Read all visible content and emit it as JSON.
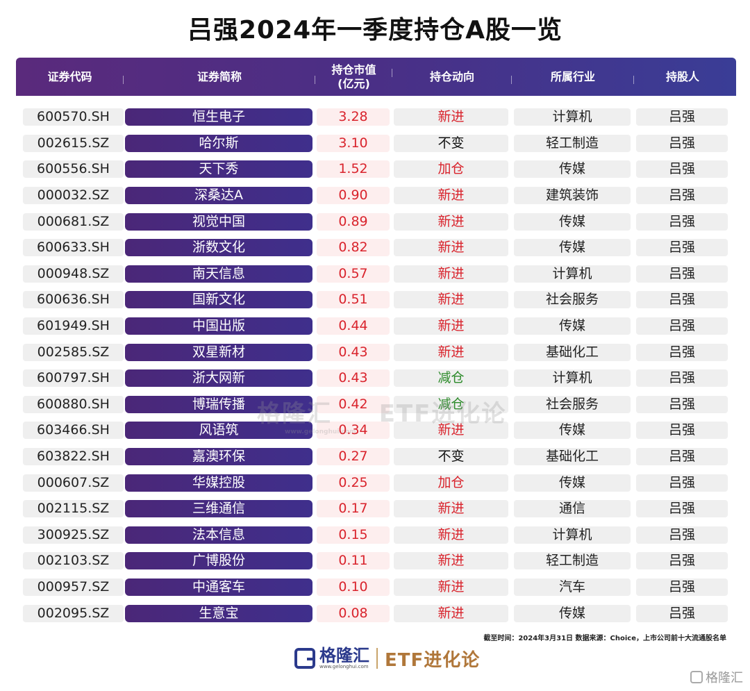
{
  "title": "吕强2024年一季度持仓A股一览",
  "headers": {
    "code": "证券代码",
    "name": "证券简称",
    "value_line1": "持仓市值",
    "value_line2": "(亿元)",
    "move": "持仓动向",
    "industry": "所属行业",
    "holder": "持股人"
  },
  "rows": [
    {
      "code": "600570.SH",
      "name": "恒生电子",
      "value": "3.28",
      "move": "新进",
      "type": "new",
      "industry": "计算机",
      "holder": "吕强"
    },
    {
      "code": "002615.SZ",
      "name": "哈尔斯",
      "value": "3.10",
      "move": "不变",
      "type": "same",
      "industry": "轻工制造",
      "holder": "吕强"
    },
    {
      "code": "600556.SH",
      "name": "天下秀",
      "value": "1.52",
      "move": "加仓",
      "type": "add",
      "industry": "传媒",
      "holder": "吕强"
    },
    {
      "code": "000032.SZ",
      "name": "深桑达A",
      "value": "0.90",
      "move": "新进",
      "type": "new",
      "industry": "建筑装饰",
      "holder": "吕强"
    },
    {
      "code": "000681.SZ",
      "name": "视觉中国",
      "value": "0.89",
      "move": "新进",
      "type": "new",
      "industry": "传媒",
      "holder": "吕强"
    },
    {
      "code": "600633.SH",
      "name": "浙数文化",
      "value": "0.82",
      "move": "新进",
      "type": "new",
      "industry": "传媒",
      "holder": "吕强"
    },
    {
      "code": "000948.SZ",
      "name": "南天信息",
      "value": "0.57",
      "move": "新进",
      "type": "new",
      "industry": "计算机",
      "holder": "吕强"
    },
    {
      "code": "600636.SH",
      "name": "国新文化",
      "value": "0.51",
      "move": "新进",
      "type": "new",
      "industry": "社会服务",
      "holder": "吕强"
    },
    {
      "code": "601949.SH",
      "name": "中国出版",
      "value": "0.44",
      "move": "新进",
      "type": "new",
      "industry": "传媒",
      "holder": "吕强"
    },
    {
      "code": "002585.SZ",
      "name": "双星新材",
      "value": "0.43",
      "move": "新进",
      "type": "new",
      "industry": "基础化工",
      "holder": "吕强"
    },
    {
      "code": "600797.SH",
      "name": "浙大网新",
      "value": "0.43",
      "move": "减仓",
      "type": "cut",
      "industry": "计算机",
      "holder": "吕强"
    },
    {
      "code": "600880.SH",
      "name": "博瑞传播",
      "value": "0.42",
      "move": "减仓",
      "type": "cut",
      "industry": "社会服务",
      "holder": "吕强"
    },
    {
      "code": "603466.SH",
      "name": "风语筑",
      "value": "0.34",
      "move": "新进",
      "type": "new",
      "industry": "传媒",
      "holder": "吕强"
    },
    {
      "code": "603822.SH",
      "name": "嘉澳环保",
      "value": "0.27",
      "move": "不变",
      "type": "same",
      "industry": "基础化工",
      "holder": "吕强"
    },
    {
      "code": "000607.SZ",
      "name": "华媒控股",
      "value": "0.25",
      "move": "加仓",
      "type": "add",
      "industry": "传媒",
      "holder": "吕强"
    },
    {
      "code": "002115.SZ",
      "name": "三维通信",
      "value": "0.17",
      "move": "新进",
      "type": "new",
      "industry": "通信",
      "holder": "吕强"
    },
    {
      "code": "300925.SZ",
      "name": "法本信息",
      "value": "0.15",
      "move": "新进",
      "type": "new",
      "industry": "计算机",
      "holder": "吕强"
    },
    {
      "code": "002103.SZ",
      "name": "广博股份",
      "value": "0.11",
      "move": "新进",
      "type": "new",
      "industry": "轻工制造",
      "holder": "吕强"
    },
    {
      "code": "000957.SZ",
      "name": "中通客车",
      "value": "0.10",
      "move": "新进",
      "type": "new",
      "industry": "汽车",
      "holder": "吕强"
    },
    {
      "code": "002095.SZ",
      "name": "生意宝",
      "value": "0.08",
      "move": "新进",
      "type": "new",
      "industry": "传媒",
      "holder": "吕强"
    }
  ],
  "watermark": {
    "brand": "格隆汇",
    "etf": "ETF进化论",
    "url": "www.gelonghui.com"
  },
  "source_note": "截至时间：2024年3月31日 数据来源：Choice，上市公司前十大流通股名单",
  "footer": {
    "brand": "格隆汇",
    "url": "www.gelonghui.com",
    "etf": "ETF进化论"
  },
  "corner": "格隆汇",
  "colors": {
    "header_start": "#5a2a7c",
    "header_end": "#3a3d96",
    "red": "#d9232c",
    "green": "#2c8a2a"
  }
}
